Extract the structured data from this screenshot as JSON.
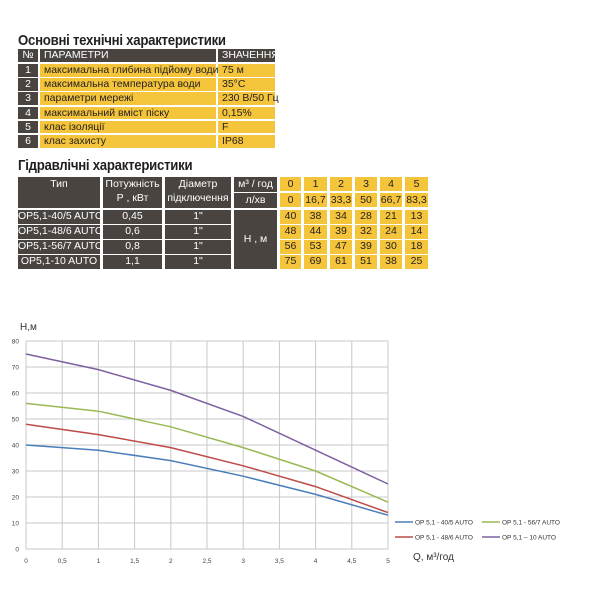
{
  "section1": {
    "title": "Основні технічні характеристики",
    "headers": [
      "№",
      "ПАРАМЕТРИ",
      "ЗНАЧЕННЯ"
    ],
    "rows": [
      [
        "1",
        "максимальна глибина підйому води",
        "75 м"
      ],
      [
        "2",
        "максимальна температура води",
        "35°C"
      ],
      [
        "3",
        "параметри мережі",
        "230 В/50 Гц"
      ],
      [
        "4",
        "максимальний вміст піску",
        "0,15%"
      ],
      [
        "5",
        "клас ізоляції",
        "F"
      ],
      [
        "6",
        "клас захисту",
        "IP68"
      ]
    ]
  },
  "section2": {
    "title": "Гідравлічні характеристики",
    "headers": {
      "type": "Тип",
      "power": "Потужність Р , кВт",
      "diameter": "Діаметр підключення",
      "flow_m3": "м³ / год",
      "flow_l": "л/хв",
      "head": "Н , м"
    },
    "flow_m3": [
      "0",
      "1",
      "2",
      "3",
      "4",
      "5"
    ],
    "flow_l": [
      "0",
      "16,7",
      "33,3",
      "50",
      "66,7",
      "83,3"
    ],
    "rows": [
      {
        "type": "OP5,1-40/5 AUTO",
        "power": "0,45",
        "diameter": "1\"",
        "heads": [
          "40",
          "38",
          "34",
          "28",
          "21",
          "13"
        ]
      },
      {
        "type": "OP5,1-48/6 AUTO",
        "power": "0,6",
        "diameter": "1\"",
        "heads": [
          "48",
          "44",
          "39",
          "32",
          "24",
          "14"
        ]
      },
      {
        "type": "OP5,1-56/7 AUTO",
        "power": "0,8",
        "diameter": "1\"",
        "heads": [
          "56",
          "53",
          "47",
          "39",
          "30",
          "18"
        ]
      },
      {
        "type": "OP5,1-10 AUTO",
        "power": "1,1",
        "diameter": "1\"",
        "heads": [
          "75",
          "69",
          "61",
          "51",
          "38",
          "25"
        ]
      }
    ]
  },
  "chart_data": {
    "type": "line",
    "ylabel": "H,м",
    "xlabel": "Q,  м³/год",
    "xlim": [
      0,
      5
    ],
    "ylim": [
      0,
      80
    ],
    "xticks": [
      "0",
      "0,5",
      "1",
      "1,5",
      "2",
      "2,5",
      "3",
      "3,5",
      "4",
      "4,5",
      "5"
    ],
    "yticks": [
      "0",
      "10",
      "20",
      "30",
      "40",
      "50",
      "60",
      "70",
      "80"
    ],
    "grid": true,
    "legend": "bottom-right",
    "x": [
      0,
      1,
      2,
      3,
      4,
      5
    ],
    "series": [
      {
        "name": "OP 5,1 - 40/5 AUTO",
        "color": "#4a7ebb",
        "values": [
          40,
          38,
          34,
          28,
          21,
          13
        ]
      },
      {
        "name": "OP 5,1 - 48/6 AUTO",
        "color": "#be4b48",
        "values": [
          48,
          44,
          39,
          32,
          24,
          14
        ]
      },
      {
        "name": "OP 5,1 - 56/7 AUTO",
        "color": "#98b954",
        "values": [
          56,
          53,
          47,
          39,
          30,
          18
        ]
      },
      {
        "name": "OP 5,1 – 10 AUTO",
        "color": "#7d60a0",
        "values": [
          75,
          69,
          61,
          51,
          38,
          25
        ]
      }
    ]
  }
}
